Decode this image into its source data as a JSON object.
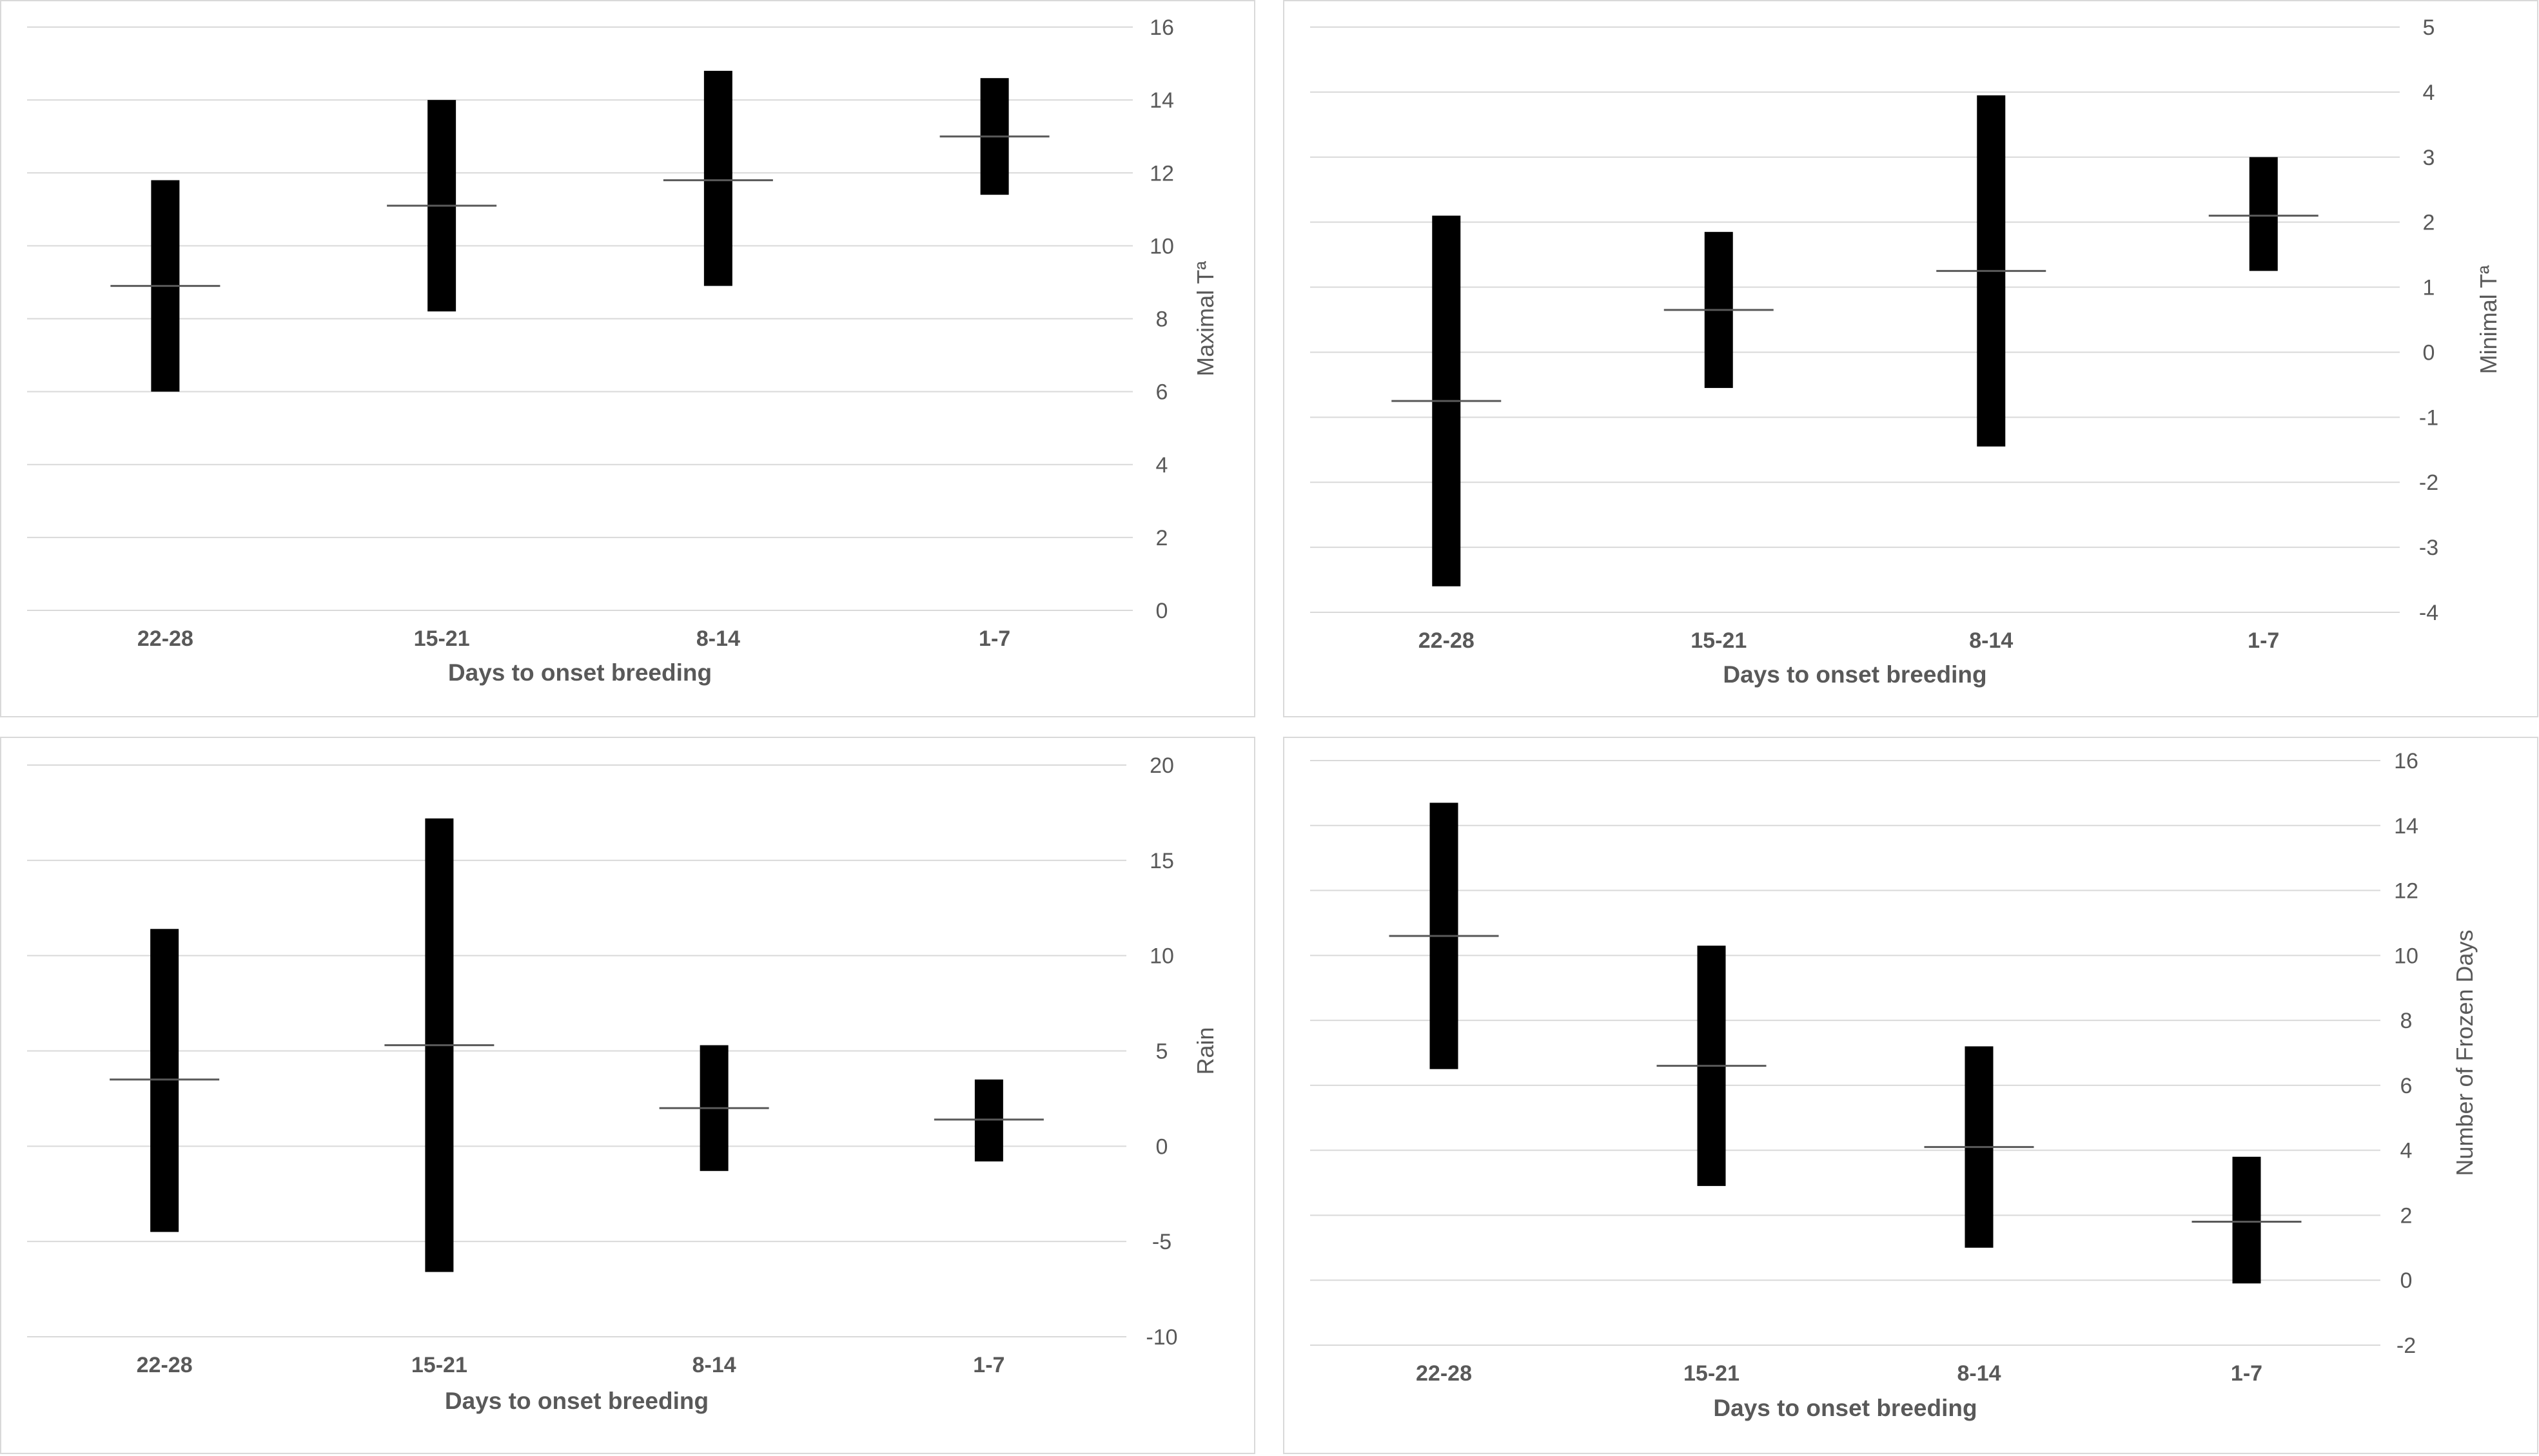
{
  "chart_data": [
    {
      "type": "bar",
      "subtype": "floating-range",
      "categories": [
        "22-28",
        "15-21",
        "8-14",
        "1-7"
      ],
      "series": [
        {
          "values": [
            {
              "low": 6.0,
              "high": 11.8,
              "mean": 8.9
            },
            {
              "low": 8.2,
              "high": 14.0,
              "mean": 11.1
            },
            {
              "low": 8.9,
              "high": 14.8,
              "mean": 11.8
            },
            {
              "low": 11.4,
              "high": 14.6,
              "mean": 13.0
            }
          ]
        }
      ],
      "ylim": [
        0,
        16
      ],
      "yticks": [
        "0",
        "2",
        "4",
        "6",
        "8",
        "10",
        "12",
        "14",
        "16"
      ],
      "title": "",
      "xlabel": "Days to onset breeding",
      "ylabel": "Maximal Tª",
      "y_axis_side": "right",
      "grid": true,
      "colors": {
        "bar": "#000000",
        "mean_line": "#595959",
        "grid": "#d9d9d9"
      }
    },
    {
      "type": "bar",
      "subtype": "floating-range",
      "categories": [
        "22-28",
        "15-21",
        "8-14",
        "1-7"
      ],
      "series": [
        {
          "values": [
            {
              "low": -3.6,
              "high": 2.1,
              "mean": -0.75
            },
            {
              "low": -0.55,
              "high": 1.85,
              "mean": 0.65
            },
            {
              "low": -1.45,
              "high": 3.95,
              "mean": 1.25
            },
            {
              "low": 1.25,
              "high": 3.0,
              "mean": 2.1
            }
          ]
        }
      ],
      "ylim": [
        -4,
        5
      ],
      "yticks": [
        "-4",
        "-3",
        "-2",
        "-1",
        "0",
        "1",
        "2",
        "3",
        "4",
        "5"
      ],
      "title": "",
      "xlabel": "Days to onset breeding",
      "ylabel": "Minimal Tª",
      "y_axis_side": "right",
      "grid": true,
      "colors": {
        "bar": "#000000",
        "mean_line": "#595959",
        "grid": "#d9d9d9"
      }
    },
    {
      "type": "bar",
      "subtype": "floating-range",
      "categories": [
        "22-28",
        "15-21",
        "8-14",
        "1-7"
      ],
      "series": [
        {
          "values": [
            {
              "low": -4.5,
              "high": 11.4,
              "mean": 3.5
            },
            {
              "low": -6.6,
              "high": 17.2,
              "mean": 5.3
            },
            {
              "low": -1.3,
              "high": 5.3,
              "mean": 2.0
            },
            {
              "low": -0.8,
              "high": 3.5,
              "mean": 1.4
            }
          ]
        }
      ],
      "ylim": [
        -10,
        20
      ],
      "yticks": [
        "-10",
        "-5",
        "0",
        "5",
        "10",
        "15",
        "20"
      ],
      "title": "",
      "xlabel": "Days to onset breeding",
      "ylabel": "Rain",
      "y_axis_side": "right",
      "grid": true,
      "colors": {
        "bar": "#000000",
        "mean_line": "#595959",
        "grid": "#d9d9d9"
      }
    },
    {
      "type": "bar",
      "subtype": "floating-range",
      "categories": [
        "22-28",
        "15-21",
        "8-14",
        "1-7"
      ],
      "series": [
        {
          "values": [
            {
              "low": 6.5,
              "high": 14.7,
              "mean": 10.6
            },
            {
              "low": 2.9,
              "high": 10.3,
              "mean": 6.6
            },
            {
              "low": 1.0,
              "high": 7.2,
              "mean": 4.1
            },
            {
              "low": -0.1,
              "high": 3.8,
              "mean": 1.8
            }
          ]
        }
      ],
      "ylim": [
        -2,
        16
      ],
      "yticks": [
        "-2",
        "0",
        "2",
        "4",
        "6",
        "8",
        "10",
        "12",
        "14",
        "16"
      ],
      "title": "",
      "xlabel": "Days to onset breeding",
      "ylabel": "Number of Frozen Days",
      "y_axis_side": "right",
      "grid": true,
      "colors": {
        "bar": "#000000",
        "mean_line": "#595959",
        "grid": "#d9d9d9"
      }
    }
  ]
}
